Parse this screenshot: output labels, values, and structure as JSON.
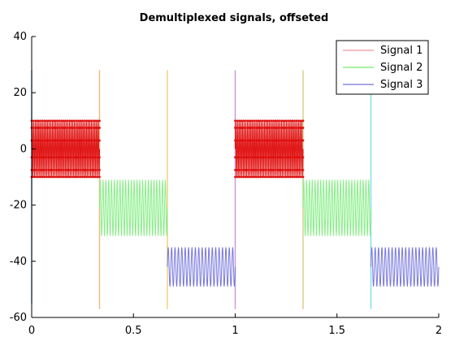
{
  "chart_data": {
    "type": "line",
    "title": "Demultiplexed signals, offseted",
    "xlabel": "",
    "ylabel": "",
    "xlim": [
      0,
      2
    ],
    "ylim": [
      -60,
      40
    ],
    "x_ticks": [
      0,
      0.5,
      1,
      1.5,
      2
    ],
    "x_tick_labels": [
      "0",
      "0.5",
      "1",
      "1.5",
      "2"
    ],
    "y_ticks": [
      -60,
      -40,
      -20,
      0,
      20,
      40
    ],
    "y_tick_labels": [
      "-60",
      "-40",
      "-20",
      "0",
      "20",
      "40"
    ],
    "grid": false,
    "legend_position": "top-right",
    "series": [
      {
        "name": "Signal 1",
        "color": "#e01010",
        "legend_color": "#f4a8a8",
        "offset": 0,
        "amplitude": 10,
        "cycles_per_interval": 40,
        "intervals": [
          [
            0,
            0.3333
          ],
          [
            1.0,
            1.3333
          ]
        ],
        "marker_levels": [
          10,
          7.5,
          3,
          -3,
          -7.5,
          -10
        ]
      },
      {
        "name": "Signal 2",
        "color": "#88ee88",
        "legend_color": "#88ee88",
        "offset": -21,
        "amplitude": 10,
        "cycles_per_interval": 24,
        "intervals": [
          [
            0.3333,
            0.6667
          ],
          [
            1.3333,
            1.6667
          ]
        ]
      },
      {
        "name": "Signal 3",
        "color": "#7777dd",
        "legend_color": "#8888dd",
        "offset": -42,
        "amplitude": 7,
        "cycles_per_interval": 20,
        "intervals": [
          [
            0.6667,
            1.0
          ],
          [
            1.6667,
            2.0
          ]
        ]
      }
    ],
    "vertical_markers": [
      {
        "x": 0.0,
        "color": "#66bbee",
        "ymin": -55,
        "ymax": 28
      },
      {
        "x": 0.3333,
        "color": "#eebb88",
        "ymin": -57,
        "ymax": 28
      },
      {
        "x": 0.6667,
        "color": "#f0d080",
        "ymin": -57,
        "ymax": 28
      },
      {
        "x": 1.0,
        "color": "#cc99dd",
        "ymin": -57,
        "ymax": 28
      },
      {
        "x": 1.3333,
        "color": "#d8d090",
        "ymin": -57,
        "ymax": 28
      },
      {
        "x": 1.6667,
        "color": "#88ddee",
        "ymin": -57,
        "ymax": 28
      }
    ]
  }
}
